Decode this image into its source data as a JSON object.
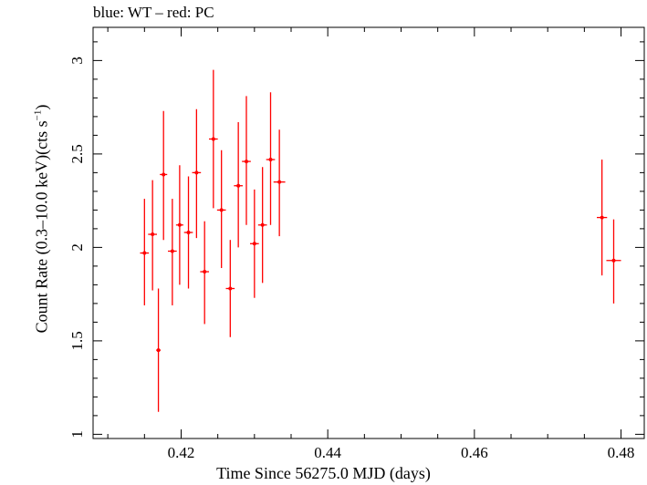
{
  "chart_data": {
    "type": "scatter",
    "title": "blue: WT – red: PC",
    "xlabel": "Time Since 56275.0 MJD (days)",
    "ylabel_prefix": "Count Rate (0.3–10.0 keV)(cts s",
    "ylabel_sup": "−1",
    "ylabel_suffix": ")",
    "xlim": [
      0.40799,
      0.48317
    ],
    "ylim": [
      0.9775,
      3.1775
    ],
    "xticks": [
      {
        "value": 0.42,
        "label": "0.42"
      },
      {
        "value": 0.44,
        "label": "0.44"
      },
      {
        "value": 0.46,
        "label": "0.46"
      },
      {
        "value": 0.48,
        "label": "0.48"
      }
    ],
    "yticks": [
      {
        "value": 1,
        "label": "1"
      },
      {
        "value": 1.5,
        "label": "1.5"
      },
      {
        "value": 2,
        "label": "2"
      },
      {
        "value": 2.5,
        "label": "2.5"
      },
      {
        "value": 3,
        "label": "3"
      }
    ],
    "series": [
      {
        "color": "#ff0000",
        "points": [
          {
            "x": 0.415,
            "xerr": 0.0006,
            "y": 1.97,
            "ylo": 1.69,
            "yhi": 2.26
          },
          {
            "x": 0.4161,
            "xerr": 0.0006,
            "y": 2.07,
            "ylo": 1.77,
            "yhi": 2.36
          },
          {
            "x": 0.4169,
            "xerr": 0.0003,
            "y": 1.45,
            "ylo": 1.12,
            "yhi": 1.78
          },
          {
            "x": 0.4176,
            "xerr": 0.0005,
            "y": 2.39,
            "ylo": 2.04,
            "yhi": 2.73
          },
          {
            "x": 0.4188,
            "xerr": 0.0006,
            "y": 1.98,
            "ylo": 1.69,
            "yhi": 2.26
          },
          {
            "x": 0.4198,
            "xerr": 0.0005,
            "y": 2.12,
            "ylo": 1.8,
            "yhi": 2.44
          },
          {
            "x": 0.421,
            "xerr": 0.0006,
            "y": 2.08,
            "ylo": 1.78,
            "yhi": 2.38
          },
          {
            "x": 0.4221,
            "xerr": 0.0006,
            "y": 2.4,
            "ylo": 2.05,
            "yhi": 2.74
          },
          {
            "x": 0.4232,
            "xerr": 0.0006,
            "y": 1.87,
            "ylo": 1.59,
            "yhi": 2.14
          },
          {
            "x": 0.4244,
            "xerr": 0.0006,
            "y": 2.58,
            "ylo": 2.21,
            "yhi": 2.95
          },
          {
            "x": 0.4255,
            "xerr": 0.0006,
            "y": 2.2,
            "ylo": 1.89,
            "yhi": 2.52
          },
          {
            "x": 0.4267,
            "xerr": 0.0006,
            "y": 1.78,
            "ylo": 1.52,
            "yhi": 2.04
          },
          {
            "x": 0.4278,
            "xerr": 0.0006,
            "y": 2.33,
            "ylo": 2.0,
            "yhi": 2.67
          },
          {
            "x": 0.4289,
            "xerr": 0.0006,
            "y": 2.46,
            "ylo": 2.12,
            "yhi": 2.81
          },
          {
            "x": 0.43,
            "xerr": 0.0006,
            "y": 2.02,
            "ylo": 1.73,
            "yhi": 2.31
          },
          {
            "x": 0.4311,
            "xerr": 0.0006,
            "y": 2.12,
            "ylo": 1.81,
            "yhi": 2.43
          },
          {
            "x": 0.4322,
            "xerr": 0.0006,
            "y": 2.47,
            "ylo": 2.12,
            "yhi": 2.83
          },
          {
            "x": 0.4334,
            "xerr": 0.0008,
            "y": 2.35,
            "ylo": 2.06,
            "yhi": 2.63
          },
          {
            "x": 0.4774,
            "xerr": 0.0007,
            "y": 2.16,
            "ylo": 1.85,
            "yhi": 2.47
          },
          {
            "x": 0.479,
            "xerr": 0.001,
            "y": 1.93,
            "ylo": 1.7,
            "yhi": 2.15
          }
        ]
      }
    ]
  }
}
